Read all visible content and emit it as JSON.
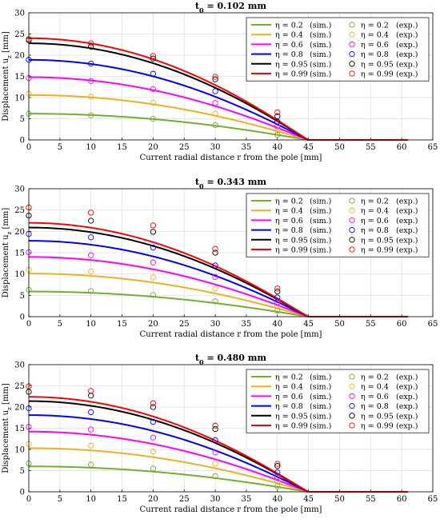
{
  "chart_data": [
    {
      "type": "line",
      "title": "t0 = 0.102 mm",
      "xlabel": "Current radial distance r from the pole [mm]",
      "ylabel": "Displacement u_z [mm]",
      "xlim": [
        0,
        65
      ],
      "ylim": [
        0,
        30
      ],
      "xticks": [
        0,
        5,
        10,
        15,
        20,
        25,
        30,
        35,
        40,
        45,
        50,
        55,
        60,
        65
      ],
      "yticks": [
        0,
        5,
        10,
        15,
        20,
        25,
        30
      ],
      "grid": true,
      "legend_position": "top-right",
      "series": [
        {
          "name": "η = 0.2 (sim.)",
          "color": "#77ac30",
          "u0": 6.2,
          "sim": true
        },
        {
          "name": "η = 0.4 (sim.)",
          "color": "#edb120",
          "u0": 10.6,
          "sim": true
        },
        {
          "name": "η = 0.6 (sim.)",
          "color": "#ff00ff",
          "u0": 14.8,
          "sim": true
        },
        {
          "name": "η = 0.8 (sim.)",
          "color": "#0000ff",
          "u0": 18.9,
          "sim": true
        },
        {
          "name": "η = 0.95 (sim.)",
          "color": "#000000",
          "u0": 22.8,
          "sim": true
        },
        {
          "name": "η = 0.99 (sim.)",
          "color": "#ff0000",
          "u0": 24.0,
          "sim": true
        },
        {
          "name": "η = 0.2 (exp.)",
          "color": "#77ac30",
          "x": [
            0,
            10,
            20,
            30,
            40
          ],
          "y": [
            6.2,
            5.8,
            5.0,
            3.5,
            1.2
          ]
        },
        {
          "name": "η = 0.4 (exp.)",
          "color": "#edb120",
          "x": [
            0,
            10,
            20,
            30,
            40
          ],
          "y": [
            10.9,
            10.2,
            8.8,
            6.2,
            2.2
          ]
        },
        {
          "name": "η = 0.6 (exp.)",
          "color": "#ff00ff",
          "x": [
            0,
            10,
            20,
            30,
            40
          ],
          "y": [
            14.6,
            13.9,
            12.0,
            8.7,
            3.2
          ]
        },
        {
          "name": "η = 0.8 (exp.)",
          "color": "#0000ff",
          "x": [
            0,
            10,
            20,
            30,
            40
          ],
          "y": [
            18.9,
            18.0,
            15.6,
            11.5,
            4.3
          ]
        },
        {
          "name": "η = 0.95 (exp.)",
          "color": "#000000",
          "x": [
            0,
            10,
            20,
            30,
            40
          ],
          "y": [
            23.5,
            22.0,
            19.2,
            14.3,
            5.6
          ]
        },
        {
          "name": "η = 0.99 (exp.)",
          "color": "#ff0000",
          "x": [
            0,
            10,
            20,
            30,
            40
          ],
          "y": [
            23.8,
            22.8,
            19.8,
            14.9,
            6.5
          ]
        }
      ]
    },
    {
      "type": "line",
      "title": "t0 = 0.343 mm",
      "xlabel": "Current radial distance r from the pole [mm]",
      "ylabel": "Displacement u_z [mm]",
      "xlim": [
        0,
        65
      ],
      "ylim": [
        0,
        30
      ],
      "xticks": [
        0,
        5,
        10,
        15,
        20,
        25,
        30,
        35,
        40,
        45,
        50,
        55,
        60,
        65
      ],
      "yticks": [
        0,
        5,
        10,
        15,
        20,
        25,
        30
      ],
      "grid": true,
      "legend_position": "top-right",
      "series": [
        {
          "name": "η = 0.2 (sim.)",
          "color": "#77ac30",
          "u0": 5.9,
          "sim": true
        },
        {
          "name": "η = 0.4 (sim.)",
          "color": "#edb120",
          "u0": 10.1,
          "sim": true
        },
        {
          "name": "η = 0.6 (sim.)",
          "color": "#ff00ff",
          "u0": 14.0,
          "sim": true
        },
        {
          "name": "η = 0.8 (sim.)",
          "color": "#0000ff",
          "u0": 17.8,
          "sim": true
        },
        {
          "name": "η = 0.95 (sim.)",
          "color": "#000000",
          "u0": 20.9,
          "sim": true
        },
        {
          "name": "η = 0.99 (sim.)",
          "color": "#ff0000",
          "u0": 22.0,
          "sim": true
        },
        {
          "name": "η = 0.2 (exp.)",
          "color": "#77ac30",
          "x": [
            0,
            10,
            20,
            30,
            40
          ],
          "y": [
            6.3,
            6.0,
            5.1,
            3.6,
            1.4
          ]
        },
        {
          "name": "η = 0.4 (exp.)",
          "color": "#edb120",
          "x": [
            0,
            10,
            20,
            30,
            40
          ],
          "y": [
            11.0,
            10.6,
            9.2,
            6.6,
            2.6
          ]
        },
        {
          "name": "η = 0.6 (exp.)",
          "color": "#ff00ff",
          "x": [
            0,
            10,
            20,
            30,
            40
          ],
          "y": [
            15.1,
            14.4,
            12.7,
            9.3,
            3.4
          ]
        },
        {
          "name": "η = 0.8 (exp.)",
          "color": "#0000ff",
          "x": [
            0,
            10,
            20,
            30,
            40
          ],
          "y": [
            19.4,
            18.6,
            16.2,
            12.0,
            4.5
          ]
        },
        {
          "name": "η = 0.95 (exp.)",
          "color": "#000000",
          "x": [
            0,
            10,
            20,
            30,
            40
          ],
          "y": [
            23.7,
            22.5,
            19.9,
            15.0,
            5.9
          ]
        },
        {
          "name": "η = 0.99 (exp.)",
          "color": "#ff0000",
          "x": [
            0,
            10,
            20,
            30,
            40
          ],
          "y": [
            25.6,
            24.4,
            21.4,
            15.9,
            6.6
          ]
        }
      ]
    },
    {
      "type": "line",
      "title": "t0 = 0.480 mm",
      "xlabel": "Current radial distance r from the pole [mm]",
      "ylabel": "Displacement u_z [mm]",
      "xlim": [
        0,
        65
      ],
      "ylim": [
        0,
        30
      ],
      "xticks": [
        0,
        5,
        10,
        15,
        20,
        25,
        30,
        35,
        40,
        45,
        50,
        55,
        60,
        65
      ],
      "yticks": [
        0,
        5,
        10,
        15,
        20,
        25,
        30
      ],
      "grid": true,
      "legend_position": "top-right",
      "series": [
        {
          "name": "η = 0.2 (sim.)",
          "color": "#77ac30",
          "u0": 6.0,
          "sim": true
        },
        {
          "name": "η = 0.4 (sim.)",
          "color": "#edb120",
          "u0": 10.3,
          "sim": true
        },
        {
          "name": "η = 0.6 (sim.)",
          "color": "#ff00ff",
          "u0": 14.2,
          "sim": true
        },
        {
          "name": "η = 0.8 (sim.)",
          "color": "#0000ff",
          "u0": 18.1,
          "sim": true
        },
        {
          "name": "η = 0.95 (sim.)",
          "color": "#000000",
          "u0": 21.4,
          "sim": true
        },
        {
          "name": "η = 0.99 (sim.)",
          "color": "#ff0000",
          "u0": 22.4,
          "sim": true
        },
        {
          "name": "η = 0.2 (exp.)",
          "color": "#77ac30",
          "x": [
            0,
            10,
            20,
            30,
            40
          ],
          "y": [
            6.7,
            6.4,
            5.5,
            3.7,
            1.3
          ]
        },
        {
          "name": "η = 0.4 (exp.)",
          "color": "#edb120",
          "x": [
            0,
            10,
            20,
            30,
            40
          ],
          "y": [
            11.3,
            10.9,
            9.5,
            6.6,
            2.4
          ]
        },
        {
          "name": "η = 0.6 (exp.)",
          "color": "#ff00ff",
          "x": [
            0,
            10,
            20,
            30,
            40
          ],
          "y": [
            15.3,
            14.7,
            12.8,
            9.3,
            3.5
          ]
        },
        {
          "name": "η = 0.8 (exp.)",
          "color": "#0000ff",
          "x": [
            0,
            10,
            20,
            30,
            40
          ],
          "y": [
            19.7,
            18.8,
            16.5,
            12.2,
            4.6
          ]
        },
        {
          "name": "η = 0.95 (exp.)",
          "color": "#000000",
          "x": [
            0,
            10,
            20,
            30,
            40
          ],
          "y": [
            23.6,
            22.7,
            20.0,
            14.8,
            6.1
          ]
        },
        {
          "name": "η = 0.99 (exp.)",
          "color": "#ff0000",
          "x": [
            0,
            10,
            20,
            30,
            40
          ],
          "y": [
            24.9,
            23.8,
            20.9,
            15.6,
            6.6
          ]
        }
      ]
    }
  ],
  "legend": {
    "labels": [
      [
        "η = 0.2",
        "(sim.)",
        "η = 0.2",
        "(exp.)"
      ],
      [
        "η = 0.4",
        "(sim.)",
        "η = 0.4",
        "(exp.)"
      ],
      [
        "η = 0.6",
        "(sim.)",
        "η = 0.6",
        "(exp.)"
      ],
      [
        "η = 0.8",
        "(sim.)",
        "η = 0.8",
        "(exp.)"
      ],
      [
        "η = 0.95",
        "(sim.)",
        "η = 0.95",
        "(exp.)"
      ],
      [
        "η = 0.99",
        "(sim.)",
        "η = 0.99",
        "(exp.)"
      ]
    ]
  },
  "sim_domain": {
    "r_end": 45,
    "r_max": 61
  }
}
